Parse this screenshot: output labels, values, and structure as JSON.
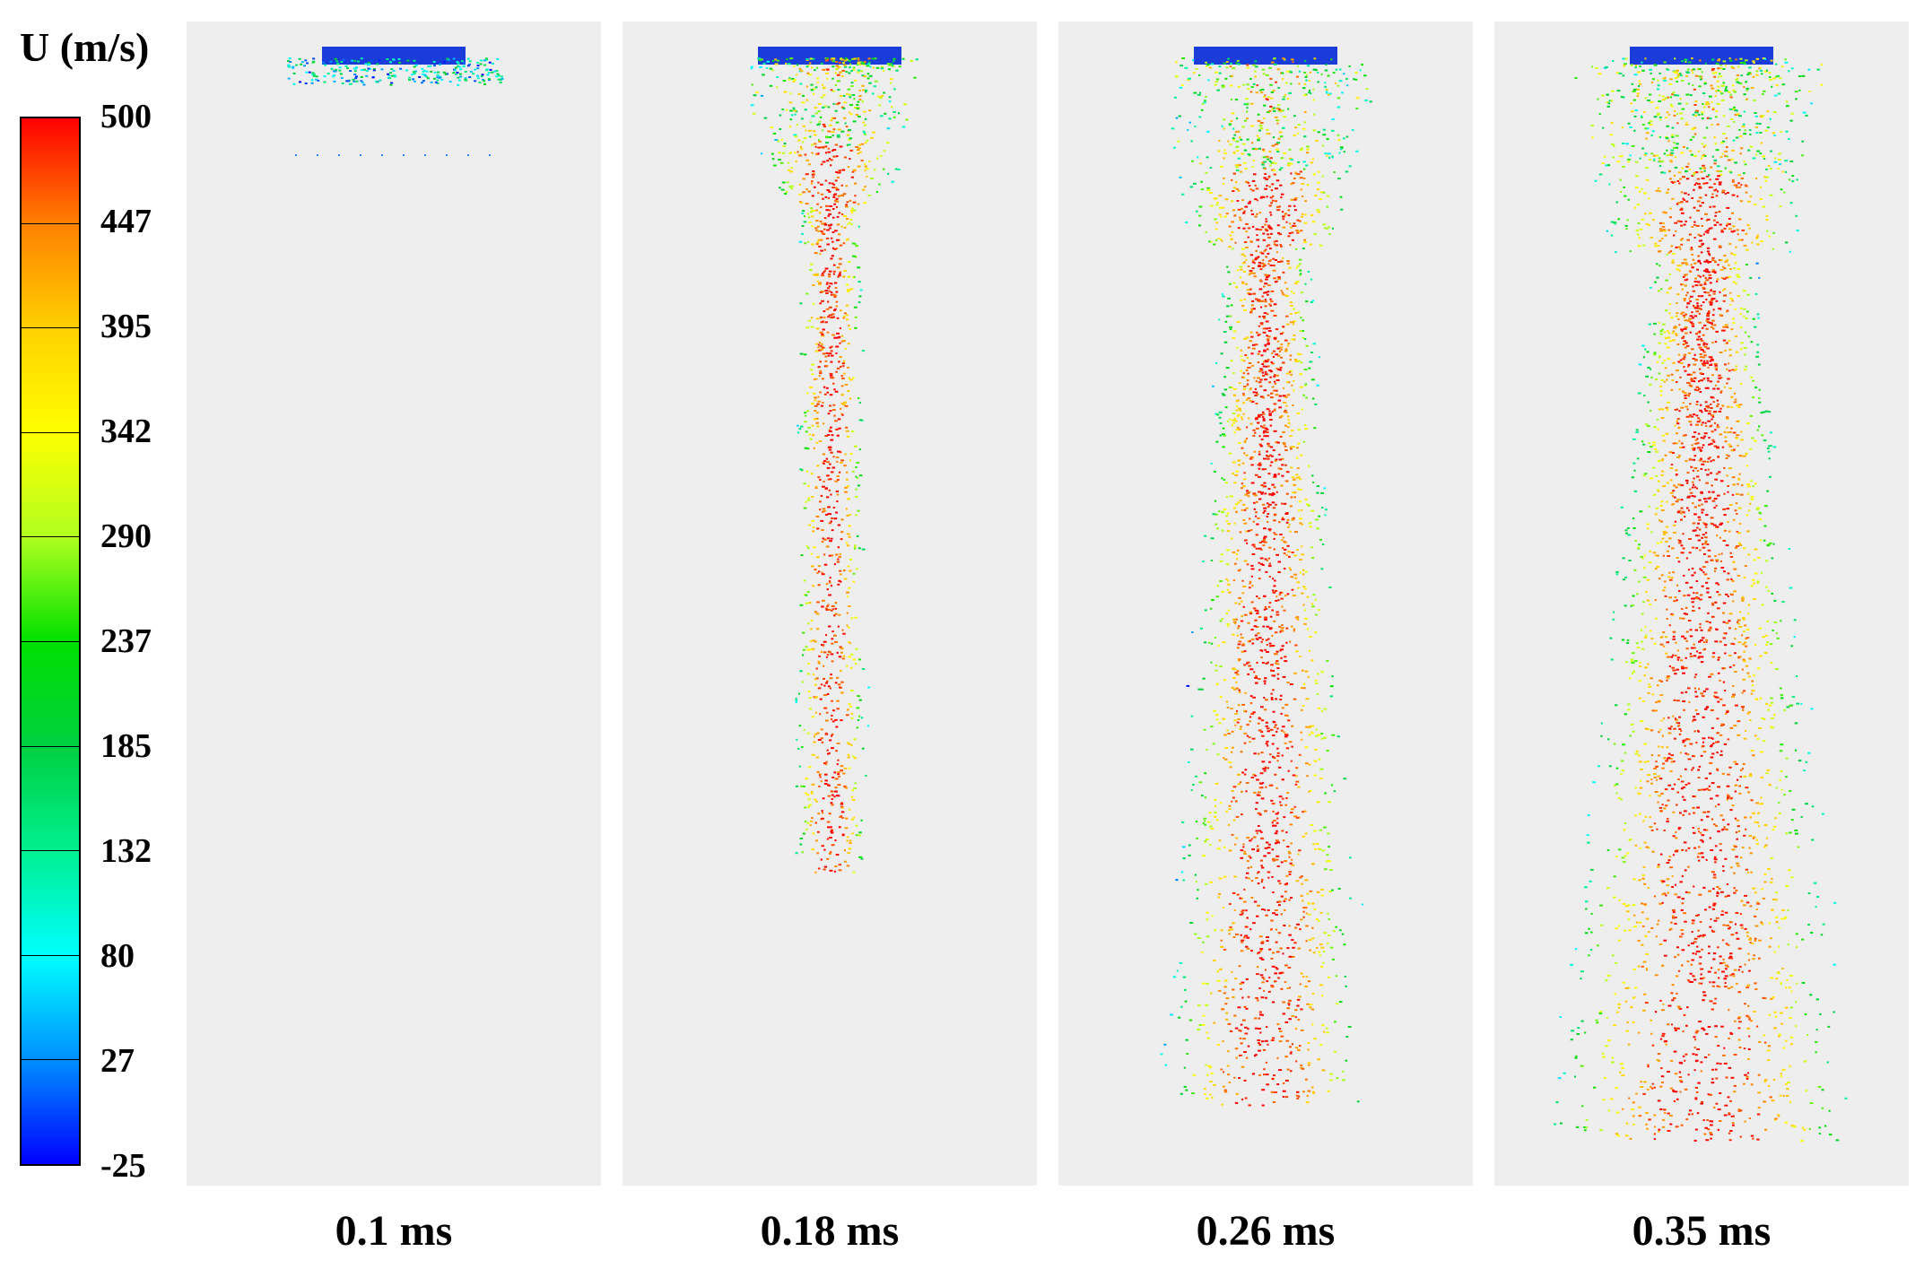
{
  "legend": {
    "title": "U (m/s)",
    "ticks": [
      "500",
      "447",
      "395",
      "342",
      "290",
      "237",
      "185",
      "132",
      "80",
      "27",
      "-25"
    ],
    "colors": [
      "#ff0000",
      "#ff8000",
      "#ffd000",
      "#ffff00",
      "#b0ff20",
      "#00e000",
      "#00d040",
      "#00f090",
      "#00ffff",
      "#0090ff",
      "#0000ff"
    ]
  },
  "panels": [
    {
      "time_label": "0.1 ms",
      "spray_length": 0.07
    },
    {
      "time_label": "0.18 ms",
      "spray_length": 0.7
    },
    {
      "time_label": "0.26 ms",
      "spray_length": 0.9
    },
    {
      "time_label": "0.35 ms",
      "spray_length": 0.93
    }
  ]
}
